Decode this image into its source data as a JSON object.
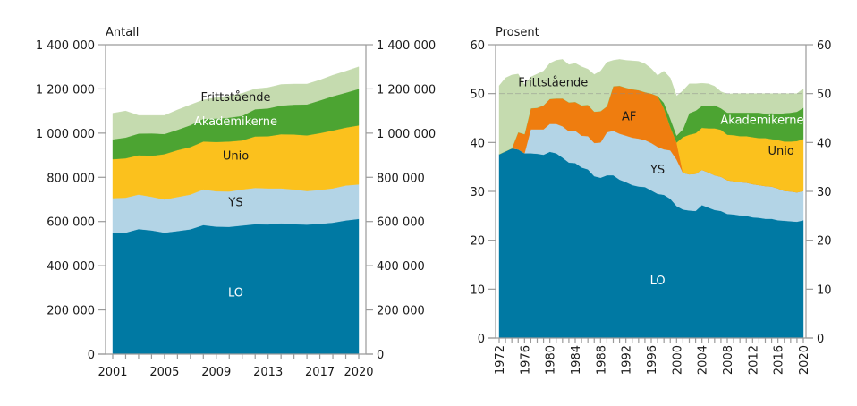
{
  "chart_data": [
    {
      "type": "area",
      "stacked": true,
      "title": "",
      "ylabel": "Antall",
      "xlabel": "",
      "ylim": [
        0,
        1400000
      ],
      "yticks": [
        0,
        200000,
        400000,
        600000,
        800000,
        1000000,
        1200000,
        1400000
      ],
      "ytick_labels": [
        "0",
        "200 000",
        "400 000",
        "600 000",
        "800 000",
        "1 000 000",
        "1 200 000",
        "1 400 000"
      ],
      "xticks_labeled": [
        2001,
        2005,
        2009,
        2013,
        2017,
        2020
      ],
      "xtick_labels": [
        "2001",
        "2005",
        "2009",
        "2013",
        "2017",
        "2020"
      ],
      "grid": false,
      "legend": "inline-labels",
      "x": [
        2001,
        2002,
        2003,
        2004,
        2005,
        2006,
        2007,
        2008,
        2009,
        2010,
        2011,
        2012,
        2013,
        2014,
        2015,
        2016,
        2017,
        2018,
        2019,
        2020
      ],
      "series": [
        {
          "name": "LO",
          "color": "#0079a3",
          "label_color": "#ffffff",
          "values": [
            550000,
            550000,
            566000,
            560000,
            550000,
            557000,
            565000,
            584000,
            577000,
            576000,
            582000,
            588000,
            587000,
            592000,
            588000,
            586000,
            590000,
            595000,
            605000,
            612000
          ]
        },
        {
          "name": "YS",
          "color": "#b3d4e6",
          "label_color": "#1a1a1a",
          "values": [
            156000,
            158000,
            156000,
            152000,
            150000,
            154000,
            157000,
            161000,
            160000,
            160000,
            163000,
            164000,
            163000,
            158000,
            157000,
            152000,
            153000,
            155000,
            158000,
            156000
          ]
        },
        {
          "name": "Unio",
          "color": "#fbc11d",
          "label_color": "#1a1a1a",
          "values": [
            176000,
            178000,
            178000,
            185000,
            205000,
            212000,
            215000,
            217000,
            223000,
            226000,
            222000,
            233000,
            236000,
            245000,
            249000,
            252000,
            257000,
            262000,
            262000,
            267000
          ]
        },
        {
          "name": "Akademikerne",
          "color": "#4ca432",
          "label_color": "#ffffff",
          "values": [
            90000,
            94000,
            98000,
            102000,
            91000,
            92000,
            99000,
            103000,
            106000,
            108000,
            111000,
            123000,
            126000,
            130000,
            135000,
            140000,
            148000,
            155000,
            158000,
            165000
          ]
        },
        {
          "name": "Frittstående",
          "color": "#c5dbaf",
          "label_color": "#1a1a1a",
          "values": [
            118000,
            120000,
            82000,
            81000,
            84000,
            90000,
            92000,
            85000,
            95000,
            98000,
            102000,
            92000,
            94000,
            95000,
            93000,
            92000,
            92000,
            95000,
            97000,
            100000
          ]
        }
      ]
    },
    {
      "type": "area",
      "stacked": true,
      "title": "",
      "ylabel": "Prosent",
      "xlabel": "",
      "ylim": [
        0,
        60
      ],
      "yticks": [
        0,
        10,
        20,
        30,
        40,
        50,
        60
      ],
      "ytick_labels": [
        "0",
        "10",
        "20",
        "30",
        "40",
        "50",
        "60"
      ],
      "xticks_labeled": [
        1972,
        1976,
        1980,
        1984,
        1988,
        1992,
        1996,
        2000,
        2004,
        2008,
        2012,
        2016,
        2020
      ],
      "xtick_labels": [
        "1972",
        "1976",
        "1980",
        "1984",
        "1988",
        "1992",
        "1996",
        "2000",
        "2004",
        "2008",
        "2012",
        "2016",
        "2020"
      ],
      "grid": false,
      "legend": "inline-labels",
      "x": [
        1972,
        1973,
        1974,
        1975,
        1976,
        1977,
        1978,
        1979,
        1980,
        1981,
        1982,
        1983,
        1984,
        1985,
        1986,
        1987,
        1988,
        1989,
        1990,
        1991,
        1992,
        1993,
        1994,
        1995,
        1996,
        1997,
        1998,
        1999,
        2000,
        2001,
        2002,
        2003,
        2004,
        2005,
        2006,
        2007,
        2008,
        2009,
        2010,
        2011,
        2012,
        2013,
        2014,
        2015,
        2016,
        2017,
        2018,
        2019,
        2020
      ],
      "series": [
        {
          "name": "LO",
          "color": "#0079a3",
          "label_color": "#ffffff",
          "values": [
            37.6,
            38.2,
            38.8,
            38.6,
            37.8,
            37.8,
            37.7,
            37.5,
            38.1,
            37.8,
            36.9,
            35.9,
            35.8,
            34.9,
            34.5,
            33.1,
            32.8,
            33.3,
            33.3,
            32.4,
            31.9,
            31.3,
            31.0,
            30.9,
            30.2,
            29.5,
            29.3,
            28.5,
            27.0,
            26.3,
            26.1,
            26.0,
            27.2,
            26.7,
            26.2,
            26.0,
            25.4,
            25.3,
            25.1,
            25.0,
            24.7,
            24.6,
            24.4,
            24.4,
            24.1,
            24.0,
            23.9,
            23.8,
            24.1
          ]
        },
        {
          "name": "YS",
          "color": "#b3d4e6",
          "label_color": "#1a1a1a",
          "values": [
            0,
            0,
            0,
            0,
            0,
            4.9,
            5.0,
            5.2,
            5.7,
            6.0,
            6.4,
            6.4,
            6.6,
            6.5,
            6.8,
            6.8,
            7.2,
            8.8,
            9.1,
            9.4,
            9.5,
            9.7,
            9.8,
            9.6,
            9.7,
            9.6,
            9.3,
            9.9,
            9.5,
            7.5,
            7.4,
            7.6,
            7.2,
            7.2,
            7.1,
            7.0,
            6.9,
            6.8,
            6.8,
            6.8,
            6.8,
            6.7,
            6.7,
            6.6,
            6.5,
            6.1,
            6.1,
            6.0,
            6.0
          ]
        },
        {
          "name": "AF",
          "color": "#ef7d0f",
          "label_color": "#1a1a1a",
          "values": [
            0,
            0,
            0,
            3.5,
            3.9,
            4.3,
            4.4,
            4.9,
            5.1,
            5.2,
            5.7,
            5.9,
            5.9,
            6.2,
            6.4,
            6.4,
            6.4,
            5.3,
            9.1,
            9.8,
            9.8,
            9.9,
            9.9,
            9.8,
            10.1,
            10.4,
            8.4,
            4.8,
            3.5,
            0,
            0,
            0,
            0,
            0,
            0,
            0,
            0,
            0,
            0,
            0,
            0,
            0,
            0,
            0,
            0,
            0,
            0,
            0,
            0
          ]
        },
        {
          "name": "Unio",
          "color": "#fbc11d",
          "label_color": "#1a1a1a",
          "values": [
            0,
            0,
            0,
            0,
            0,
            0,
            0,
            0,
            0,
            0,
            0,
            0,
            0,
            0,
            0,
            0,
            0,
            0,
            0,
            0,
            0,
            0,
            0,
            0,
            0,
            0,
            0,
            0,
            0,
            7.3,
            8.1,
            8.3,
            8.6,
            9.0,
            9.6,
            9.6,
            9.3,
            9.4,
            9.4,
            9.5,
            9.6,
            9.6,
            9.8,
            9.7,
            9.9,
            10.1,
            10.2,
            10.5,
            10.6
          ]
        },
        {
          "name": "Akademikerne",
          "color": "#4ca432",
          "label_color": "#ffffff",
          "values": [
            0,
            0,
            0,
            0,
            0,
            0,
            0,
            0,
            0,
            0,
            0,
            0,
            0,
            0,
            0,
            0,
            0,
            0,
            0,
            0,
            0,
            0,
            0,
            0,
            0,
            0,
            1.1,
            1.7,
            1.4,
            1.6,
            4.4,
            4.6,
            4.5,
            4.6,
            4.7,
            4.4,
            4.5,
            4.6,
            4.8,
            4.8,
            5.0,
            5.2,
            5.0,
            5.3,
            5.3,
            5.8,
            5.9,
            6.0,
            6.4
          ]
        },
        {
          "name": "Frittstående",
          "color": "#c5dbaf",
          "label_color": "#1a1a1a",
          "values": [
            14.0,
            15.0,
            15.0,
            11.9,
            10.1,
            6.4,
            6.9,
            7.0,
            7.3,
            7.8,
            8.0,
            7.7,
            7.9,
            7.9,
            7.3,
            7.6,
            8.2,
            9.0,
            5.3,
            5.4,
            5.6,
            5.8,
            5.9,
            5.8,
            5.1,
            4.2,
            6.5,
            8.3,
            8.1,
            7.9,
            6.0,
            5.5,
            4.6,
            4.5,
            3.9,
            3.4,
            3.8,
            3.9,
            3.9,
            3.9,
            3.9,
            3.9,
            4.1,
            4.0,
            4.2,
            4.0,
            3.9,
            3.7,
            3.9
          ]
        }
      ]
    }
  ]
}
